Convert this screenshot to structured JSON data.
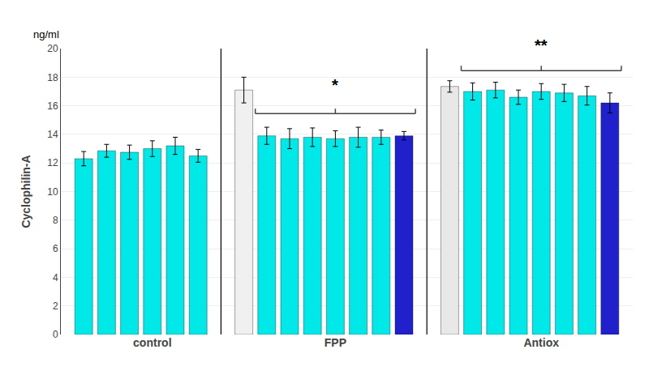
{
  "chart_data": {
    "type": "bar",
    "categories": [
      null,
      null,
      null,
      "control",
      null,
      null,
      null,
      null,
      null,
      null,
      null,
      "FPP",
      null,
      null,
      null,
      null,
      null,
      null,
      null,
      null,
      "Antiox",
      null,
      null,
      null
    ],
    "values": [
      12.3,
      12.85,
      12.75,
      13.0,
      13.2,
      12.5,
      null,
      17.1,
      13.9,
      13.7,
      13.8,
      13.7,
      13.8,
      13.8,
      13.9,
      null,
      17.35,
      17.0,
      17.1,
      16.6,
      17.0,
      16.9,
      16.7,
      16.2
    ],
    "errors": [
      0.5,
      0.45,
      0.5,
      0.55,
      0.6,
      0.45,
      null,
      0.9,
      0.6,
      0.7,
      0.65,
      0.55,
      0.7,
      0.5,
      0.3,
      null,
      0.4,
      0.6,
      0.55,
      0.5,
      0.55,
      0.6,
      0.65,
      0.7
    ],
    "colors": [
      "#00E8E8",
      "#00E8E8",
      "#00E8E8",
      "#00E8E8",
      "#00E8E8",
      "#00E8E8",
      null,
      "#F0F0F0",
      "#00E8E8",
      "#00E8E8",
      "#00E8E8",
      "#00E8E8",
      "#00E8E8",
      "#00E8E8",
      "#2020CC",
      null,
      "#E8E8E8",
      "#00E8E8",
      "#00E8E8",
      "#00E8E8",
      "#00E8E8",
      "#00E8E8",
      "#00E8E8",
      "#2020CC"
    ],
    "ylabel": "Cyclophilin-A",
    "ylim": [
      0,
      20
    ],
    "yticks": [
      0,
      2,
      4,
      6,
      8,
      10,
      12,
      14,
      16,
      18,
      20
    ],
    "grid": true,
    "annotations": [
      {
        "text": "ng/ml"
      },
      {
        "text": "*",
        "x": 11,
        "y": 16.7,
        "span": [
          7.5,
          14.5
        ],
        "span_y": 15.8
      },
      {
        "text": "**",
        "x": 20,
        "y": 19.5,
        "span": [
          16.5,
          23.5
        ],
        "span_y": 18.8
      }
    ]
  }
}
